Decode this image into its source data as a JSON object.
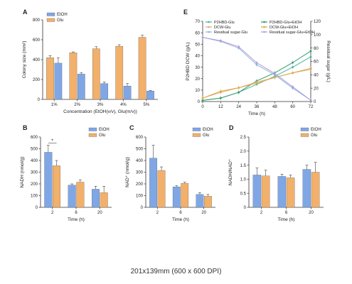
{
  "colors": {
    "etoh": "#7fa7e6",
    "glu": "#f2b06b",
    "axis": "#333333",
    "err": "#444444"
  },
  "caption": "201x139mm (600 x 600 DPI)",
  "chart_data": [
    {
      "panel": "A",
      "type": "bar",
      "categories": [
        "1%",
        "2%",
        "3%",
        "4%",
        "5%"
      ],
      "series": [
        {
          "name": "EtOH",
          "values": [
            365,
            255,
            160,
            135,
            85
          ],
          "errors": [
            55,
            15,
            15,
            25,
            5
          ]
        },
        {
          "name": "Glu",
          "values": [
            420,
            470,
            510,
            535,
            625
          ],
          "errors": [
            20,
            8,
            20,
            15,
            20
          ]
        }
      ],
      "xlabel": "Concentration (EtOH(v/v), Glu(m/v))",
      "ylabel": "Colony size (mm²)",
      "ylim": [
        0,
        800
      ],
      "yticks": [
        0,
        200,
        400,
        600,
        800
      ],
      "legend": "top-left"
    },
    {
      "panel": "E",
      "type": "line",
      "x": [
        0,
        12,
        24,
        36,
        48,
        60,
        72
      ],
      "xticks": [
        "0",
        "12",
        "24",
        "36",
        "48",
        "60",
        "72"
      ],
      "xlabel": "Time (h)",
      "ylabel": "P2HBD DCW (g/L)",
      "y2label": "Residual sugar (g/L)",
      "ylim": [
        0,
        70
      ],
      "yticks": [
        0,
        10,
        20,
        30,
        40,
        50,
        60,
        70
      ],
      "y2lim": [
        0,
        120
      ],
      "y2ticks": [
        0,
        20,
        40,
        60,
        80,
        100,
        120
      ],
      "legend": "top",
      "series": [
        {
          "name": "P2HBD-Glu",
          "axis": "left",
          "color": "#48b59d",
          "values": [
            1,
            3,
            8,
            15,
            22,
            30,
            39
          ]
        },
        {
          "name": "P2HBD-Glu+EtOH",
          "axis": "left",
          "color": "#2e9e6a",
          "values": [
            1,
            3,
            8,
            18,
            25,
            34,
            44
          ]
        },
        {
          "name": "DCW-Glu",
          "axis": "left",
          "color": "#e8a870",
          "values": [
            3,
            8,
            12,
            17,
            21,
            25,
            28
          ]
        },
        {
          "name": "DCW-Glu+EtOH",
          "axis": "left",
          "color": "#d9a94a",
          "values": [
            3,
            9,
            12,
            16,
            21,
            25,
            29
          ]
        },
        {
          "name": "Residual sugar-Glu",
          "axis": "right",
          "color": "#8ab6e0",
          "values": [
            96,
            90,
            80,
            55,
            40,
            20,
            2
          ]
        },
        {
          "name": "Residual sugar-Glu+EtOH",
          "axis": "right",
          "color": "#b49bd6",
          "values": [
            96,
            91,
            82,
            58,
            42,
            22,
            2
          ]
        }
      ]
    },
    {
      "panel": "B",
      "type": "bar",
      "categories": [
        "2",
        "6",
        "20"
      ],
      "series": [
        {
          "name": "EtOH",
          "values": [
            470,
            190,
            155
          ],
          "errors": [
            60,
            10,
            25
          ]
        },
        {
          "name": "Glu",
          "values": [
            355,
            215,
            125
          ],
          "errors": [
            45,
            20,
            55
          ]
        }
      ],
      "xlabel": "Time (h)",
      "ylabel": "NADH (nmol/g)",
      "ylim": [
        0,
        600
      ],
      "yticks": [
        0,
        100,
        200,
        300,
        400,
        500,
        600
      ],
      "annotation": "*",
      "legend": "top-right"
    },
    {
      "panel": "C",
      "type": "bar",
      "categories": [
        "2",
        "6",
        "20"
      ],
      "series": [
        {
          "name": "EtOH",
          "values": [
            420,
            175,
            110
          ],
          "errors": [
            110,
            10,
            15
          ]
        },
        {
          "name": "Glu",
          "values": [
            315,
            205,
            95
          ],
          "errors": [
            30,
            10,
            15
          ]
        }
      ],
      "xlabel": "Time (h)",
      "ylabel": "NAD⁺ (nmol/g)",
      "ylim": [
        0,
        600
      ],
      "yticks": [
        0,
        100,
        200,
        300,
        400,
        500,
        600
      ],
      "legend": "top-right"
    },
    {
      "panel": "D",
      "type": "bar",
      "categories": [
        "2",
        "6",
        "20"
      ],
      "series": [
        {
          "name": "EtOH",
          "values": [
            1.15,
            1.1,
            1.35
          ],
          "errors": [
            0.25,
            0.08,
            0.15
          ]
        },
        {
          "name": "Glu",
          "values": [
            1.12,
            1.05,
            1.25
          ],
          "errors": [
            0.2,
            0.1,
            0.35
          ]
        }
      ],
      "xlabel": "Time (h)",
      "ylabel": "NADH/NAD⁺",
      "ylim": [
        0,
        2.5
      ],
      "yticks": [
        0,
        0.5,
        1.0,
        1.5,
        2.0,
        2.5
      ],
      "ytick_labels": [
        "0",
        "0.5",
        "1.0",
        "1.5",
        "2.0",
        "2.5"
      ],
      "legend": "top-right"
    }
  ]
}
